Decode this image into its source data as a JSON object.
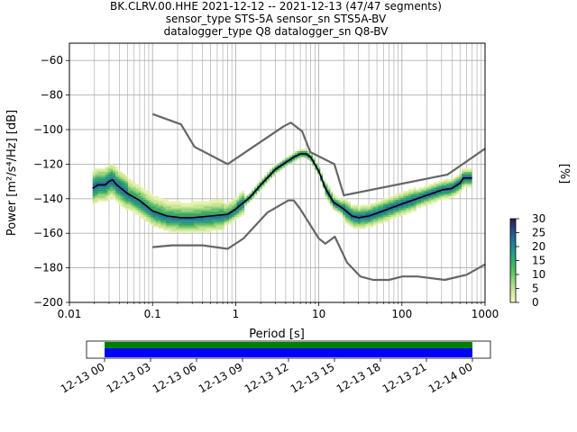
{
  "title": {
    "line1": "BK.CLRV.00.HHE   2021-12-12 -- 2021-12-13  (47/47 segments)",
    "line2": "sensor_type STS-5A sensor_sn STS5A-BV",
    "line3": "datalogger_type Q8 datalogger_sn Q8-BV"
  },
  "chart_data": [
    {
      "type": "heatmap",
      "xlabel": "Period [s]",
      "ylabel": "Power [m²/s⁴/Hz] [dB]",
      "xscale": "log",
      "xlim": [
        0.01,
        1000
      ],
      "ylim": [
        -200,
        -50
      ],
      "xticks": [
        "0.01",
        "0.1",
        "1",
        "10",
        "100",
        "1000"
      ],
      "yticks": [
        "−200",
        "−180",
        "−160",
        "−140",
        "−120",
        "−100",
        "−80",
        "−60"
      ],
      "grid": true,
      "series": [
        {
          "kind": "mode",
          "color": "#000000",
          "points": [
            [
              0.019,
              -134
            ],
            [
              0.022,
              -132
            ],
            [
              0.027,
              -132
            ],
            [
              0.03,
              -130
            ],
            [
              0.033,
              -129
            ],
            [
              0.037,
              -132
            ],
            [
              0.05,
              -137
            ],
            [
              0.07,
              -141
            ],
            [
              0.1,
              -147
            ],
            [
              0.15,
              -150
            ],
            [
              0.22,
              -151
            ],
            [
              0.3,
              -151
            ],
            [
              0.5,
              -150
            ],
            [
              0.8,
              -149
            ],
            [
              1,
              -146
            ],
            [
              1.5,
              -139
            ],
            [
              2,
              -132
            ],
            [
              3,
              -123
            ],
            [
              4,
              -119
            ],
            [
              5,
              -116
            ],
            [
              6,
              -114
            ],
            [
              7,
              -114
            ],
            [
              8,
              -116
            ],
            [
              10,
              -124
            ],
            [
              12,
              -134
            ],
            [
              15,
              -142
            ],
            [
              20,
              -146
            ],
            [
              25,
              -150
            ],
            [
              30,
              -151
            ],
            [
              40,
              -150
            ],
            [
              60,
              -147
            ],
            [
              100,
              -143
            ],
            [
              200,
              -138
            ],
            [
              300,
              -135
            ],
            [
              400,
              -134
            ],
            [
              500,
              -131
            ],
            [
              550,
              -128
            ],
            [
              700,
              -128
            ]
          ]
        },
        {
          "kind": "noise-model-high",
          "color": "#666666",
          "points": [
            [
              0.1,
              -91
            ],
            [
              0.22,
              -97
            ],
            [
              0.32,
              -110
            ],
            [
              0.8,
              -120
            ],
            [
              3.8,
              -98
            ],
            [
              4.6,
              -96
            ],
            [
              6.3,
              -101
            ],
            [
              7.9,
              -113
            ],
            [
              15.4,
              -120
            ],
            [
              20,
              -138
            ],
            [
              354.8,
              -126
            ],
            [
              1000,
              -111
            ]
          ]
        },
        {
          "kind": "noise-model-low",
          "color": "#666666",
          "points": [
            [
              0.1,
              -168
            ],
            [
              0.17,
              -167
            ],
            [
              0.4,
              -167
            ],
            [
              0.8,
              -169
            ],
            [
              1.24,
              -163
            ],
            [
              2.4,
              -148
            ],
            [
              4.3,
              -141
            ],
            [
              5,
              -141
            ],
            [
              6,
              -146
            ],
            [
              10,
              -163
            ],
            [
              12,
              -166
            ],
            [
              15.6,
              -162
            ],
            [
              21.9,
              -177
            ],
            [
              31.6,
              -185
            ],
            [
              45,
              -187
            ],
            [
              70,
              -187
            ],
            [
              101,
              -185
            ],
            [
              154,
              -185
            ],
            [
              328,
              -187
            ],
            [
              600,
              -184
            ],
            [
              1000,
              -178
            ]
          ]
        }
      ],
      "colorbar": {
        "label": "[%]",
        "range": [
          0,
          30
        ],
        "ticks": [
          "0",
          "5",
          "10",
          "15",
          "20",
          "25",
          "30"
        ]
      }
    },
    {
      "type": "timeline",
      "tick_labels": [
        "12-13 00",
        "12-13 03",
        "12-13 06",
        "12-13 09",
        "12-13 12",
        "12-13 15",
        "12-13 18",
        "12-13 21",
        "12-14 00"
      ],
      "bars": [
        {
          "color": "#008000"
        },
        {
          "color": "#0000ff"
        }
      ]
    }
  ]
}
